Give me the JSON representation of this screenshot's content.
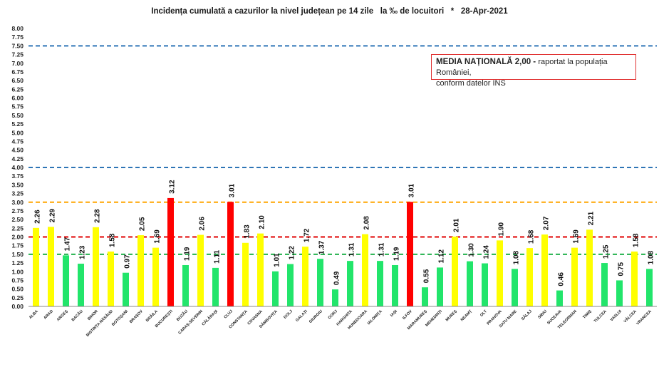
{
  "chart_data": {
    "type": "bar",
    "title": "Incidența cumulată a cazurilor la nivel județean pe 14 zile   la ‰ de locuitori",
    "date": "28-Apr-2021",
    "date_marker": "*",
    "categories": [
      "ALBA",
      "ARAD",
      "ARGEȘ",
      "BACĂU",
      "BIHOR",
      "BISTRIȚA NĂSĂUD",
      "BOTOȘANI",
      "BRAȘOV",
      "BRĂILA",
      "BUCUREȘTI",
      "BUZĂU",
      "CARAȘ-SEVERIN",
      "CĂLĂRAȘI",
      "CLUJ",
      "CONSTANȚA",
      "COVASNA",
      "DÂMBOVIȚA",
      "DOLJ",
      "GALAȚI",
      "GIURGIU",
      "GORJ",
      "HARGHITA",
      "HUNEDOARA",
      "IALOMIȚA",
      "IAȘI",
      "ILFOV",
      "MARAMUREȘ",
      "MEHEDINȚI",
      "MUREȘ",
      "NEAMȚ",
      "OLT",
      "PRAHOVA",
      "SATU MARE",
      "SĂLAJ",
      "SIBIU",
      "SUCEAVA",
      "TELEORMAN",
      "TIMIȘ",
      "TULCEA",
      "VASLUI",
      "VÂLCEA",
      "VRANCEA"
    ],
    "values": [
      2.26,
      2.29,
      1.47,
      1.23,
      2.28,
      1.58,
      0.97,
      2.05,
      1.69,
      3.12,
      1.19,
      2.06,
      1.11,
      3.01,
      1.83,
      2.1,
      1.01,
      1.22,
      1.72,
      1.37,
      0.49,
      1.31,
      2.08,
      1.31,
      1.19,
      3.01,
      0.55,
      1.12,
      2.01,
      1.3,
      1.24,
      1.9,
      1.08,
      1.68,
      2.07,
      0.46,
      1.69,
      2.21,
      1.25,
      0.75,
      1.58,
      1.08
    ],
    "value_labels": [
      "2.26",
      "2.29",
      "1.47",
      "1.23",
      "2.28",
      "1.58",
      "0.97",
      "2.05",
      "1.69",
      "3.12",
      "1.19",
      "2.06",
      "1.11",
      "3.01",
      "1.83",
      "2.10",
      "1.01",
      "1.22",
      "1.72",
      "1.37",
      "0.49",
      "1.31",
      "2.08",
      "1.31",
      "1.19",
      "3.01",
      "0.55",
      "1.12",
      "2.01",
      "1.30",
      "1.24",
      "1.90",
      "1.08",
      "1.68",
      "2.07",
      "0.46",
      "1.69",
      "2.21",
      "1.25",
      "0.75",
      "1.58",
      "1.08"
    ],
    "bar_colors": {
      "green": "#22e56b",
      "yellow": "#ffff00",
      "red": "#ff0000"
    },
    "color_thresholds": {
      "green_below": 1.5,
      "red_above": 3.0
    },
    "ylim": [
      0,
      8
    ],
    "yticks": [
      "0.00",
      "0.25",
      "0.50",
      "0.75",
      "1.00",
      "1.25",
      "1.50",
      "1.75",
      "2.00",
      "2.25",
      "2.50",
      "2.75",
      "3.00",
      "3.25",
      "3.50",
      "3.75",
      "4.00",
      "4.25",
      "4.50",
      "4.75",
      "5.00",
      "5.25",
      "5.50",
      "5.75",
      "6.00",
      "6.25",
      "6.50",
      "6.75",
      "7.00",
      "7.25",
      "7.50",
      "7.75",
      "8.00"
    ],
    "reference_lines": [
      {
        "value": 7.5,
        "color": "#2e75b6"
      },
      {
        "value": 4.0,
        "color": "#2e75b6"
      },
      {
        "value": 3.0,
        "color": "#ffa500"
      },
      {
        "value": 2.0,
        "color": "#e00000"
      },
      {
        "value": 1.5,
        "color": "#22b14c"
      }
    ],
    "xlabel": "",
    "ylabel": "",
    "grid": false
  },
  "note": {
    "strong": "MEDIA NAȚIONALĂ 2,00 - ",
    "text_line1": "raportat la populația României,",
    "text_line2": "conform datelor INS"
  }
}
